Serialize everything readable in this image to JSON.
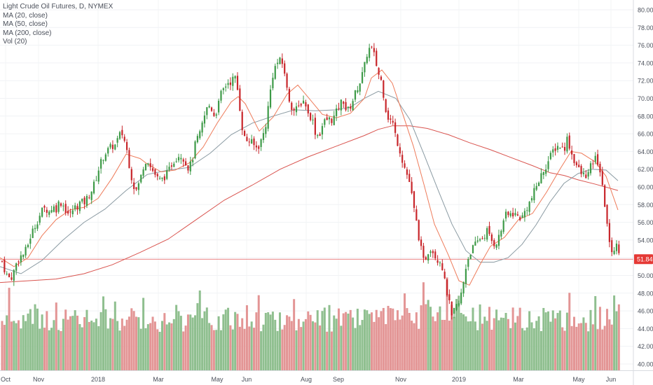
{
  "legend": {
    "title": "Light Crude Oil Futures, D, NYMEX",
    "ma20": "MA (20, close)",
    "ma50": "MA (50, close)",
    "ma200": "MA (200, close)",
    "vol": "Vol (20)"
  },
  "colors": {
    "up": "#3d9a47",
    "down": "#c8262b",
    "vol_up": "#8fbf8f",
    "vol_down": "#e39595",
    "ma20": "#ee7b5a",
    "ma50": "#8a9aa2",
    "ma200": "#d9544f",
    "last_price_bg": "#e53935"
  },
  "chart_data": {
    "type": "candlestick",
    "y_axis": {
      "ticks": [
        "80.00",
        "78.00",
        "76.00",
        "74.00",
        "72.00",
        "70.00",
        "68.00",
        "66.00",
        "64.00",
        "62.00",
        "60.00",
        "58.00",
        "56.00",
        "54.00",
        "52.00",
        "50.00",
        "48.00",
        "46.00",
        "44.00",
        "42.00",
        "40.00"
      ],
      "range": [
        39.2,
        81.2
      ]
    },
    "x_axis": {
      "labels": [
        "Oct",
        "Nov",
        "2018",
        "Mar",
        "May",
        "Jun",
        "Aug",
        "Sep",
        "Nov",
        "2019",
        "Mar",
        "May",
        "Jun"
      ]
    },
    "last_price": "51.84",
    "price_path": [
      [
        0,
        52.5
      ],
      [
        5,
        51.0
      ],
      [
        10,
        50.0
      ],
      [
        15,
        49.6
      ],
      [
        20,
        50.5
      ],
      [
        25,
        51.8
      ],
      [
        30,
        52.2
      ],
      [
        35,
        52.5
      ],
      [
        40,
        53.5
      ],
      [
        45,
        54.8
      ],
      [
        50,
        55.6
      ],
      [
        55,
        56.5
      ],
      [
        60,
        57.3
      ],
      [
        65,
        57.6
      ],
      [
        70,
        57.2
      ],
      [
        75,
        57.8
      ],
      [
        80,
        57.5
      ],
      [
        85,
        58.4
      ],
      [
        90,
        58.0
      ],
      [
        95,
        57.2
      ],
      [
        100,
        56.8
      ],
      [
        105,
        57.6
      ],
      [
        110,
        57.8
      ],
      [
        115,
        58.3
      ],
      [
        120,
        58.2
      ],
      [
        125,
        58.8
      ],
      [
        130,
        59.5
      ],
      [
        135,
        60.4
      ],
      [
        140,
        61.8
      ],
      [
        145,
        63.0
      ],
      [
        150,
        63.8
      ],
      [
        155,
        64.2
      ],
      [
        160,
        64.6
      ],
      [
        165,
        64.7
      ],
      [
        170,
        65.8
      ],
      [
        175,
        66.0
      ],
      [
        180,
        64.6
      ],
      [
        185,
        62.3
      ],
      [
        190,
        60.2
      ],
      [
        195,
        59.6
      ],
      [
        200,
        60.8
      ],
      [
        205,
        62.5
      ],
      [
        210,
        63.3
      ],
      [
        215,
        62.2
      ],
      [
        220,
        61.6
      ],
      [
        225,
        60.9
      ],
      [
        230,
        60.7
      ],
      [
        235,
        61.2
      ],
      [
        240,
        61.6
      ],
      [
        245,
        62.6
      ],
      [
        250,
        63.2
      ],
      [
        255,
        63.6
      ],
      [
        260,
        63.6
      ],
      [
        265,
        62.7
      ],
      [
        270,
        62.0
      ],
      [
        275,
        63.3
      ],
      [
        280,
        65.3
      ],
      [
        285,
        65.8
      ],
      [
        290,
        67.5
      ],
      [
        295,
        68.8
      ],
      [
        300,
        69.3
      ],
      [
        305,
        68.1
      ],
      [
        310,
        68.7
      ],
      [
        315,
        70.4
      ],
      [
        320,
        71.2
      ],
      [
        325,
        71.8
      ],
      [
        330,
        71.9
      ],
      [
        335,
        72.5
      ],
      [
        340,
        70.6
      ],
      [
        345,
        67.0
      ],
      [
        350,
        65.2
      ],
      [
        355,
        65.3
      ],
      [
        360,
        64.9
      ],
      [
        365,
        64.4
      ],
      [
        370,
        64.7
      ],
      [
        375,
        65.7
      ],
      [
        380,
        67.3
      ],
      [
        385,
        70.4
      ],
      [
        390,
        73.0
      ],
      [
        395,
        74.0
      ],
      [
        400,
        74.2
      ],
      [
        405,
        73.7
      ],
      [
        410,
        70.7
      ],
      [
        415,
        69.3
      ],
      [
        420,
        68.6
      ],
      [
        425,
        68.8
      ],
      [
        430,
        69.6
      ],
      [
        435,
        69.8
      ],
      [
        440,
        68.1
      ],
      [
        445,
        67.9
      ],
      [
        450,
        66.2
      ],
      [
        455,
        65.7
      ],
      [
        460,
        66.9
      ],
      [
        465,
        67.6
      ],
      [
        470,
        67.6
      ],
      [
        475,
        67.6
      ],
      [
        480,
        68.4
      ],
      [
        485,
        69.4
      ],
      [
        490,
        69.8
      ],
      [
        495,
        68.4
      ],
      [
        500,
        69.1
      ],
      [
        505,
        70.1
      ],
      [
        510,
        71.2
      ],
      [
        515,
        72.1
      ],
      [
        520,
        73.5
      ],
      [
        525,
        75.5
      ],
      [
        530,
        75.7
      ],
      [
        535,
        74.6
      ],
      [
        540,
        72.8
      ],
      [
        545,
        71.8
      ],
      [
        550,
        69.0
      ],
      [
        555,
        67.6
      ],
      [
        560,
        67.4
      ],
      [
        565,
        65.6
      ],
      [
        570,
        64.4
      ],
      [
        575,
        62.8
      ],
      [
        580,
        61.6
      ],
      [
        585,
        60.4
      ],
      [
        590,
        57.8
      ],
      [
        595,
        55.7
      ],
      [
        600,
        53.3
      ],
      [
        605,
        51.4
      ],
      [
        610,
        52.6
      ],
      [
        615,
        53.2
      ],
      [
        620,
        52.4
      ],
      [
        625,
        51.8
      ],
      [
        630,
        51.6
      ],
      [
        635,
        49.1
      ],
      [
        640,
        47.4
      ],
      [
        645,
        45.1
      ],
      [
        650,
        46.4
      ],
      [
        655,
        46.8
      ],
      [
        660,
        48.5
      ],
      [
        665,
        51.0
      ],
      [
        670,
        52.5
      ],
      [
        675,
        53.1
      ],
      [
        680,
        53.6
      ],
      [
        685,
        54.2
      ],
      [
        690,
        54.3
      ],
      [
        695,
        55.1
      ],
      [
        700,
        54.1
      ],
      [
        705,
        53.6
      ],
      [
        710,
        53.9
      ],
      [
        715,
        55.0
      ],
      [
        720,
        56.8
      ],
      [
        725,
        56.7
      ],
      [
        730,
        57.1
      ],
      [
        735,
        56.9
      ],
      [
        740,
        56.6
      ],
      [
        745,
        56.5
      ],
      [
        750,
        57.4
      ],
      [
        755,
        58.1
      ],
      [
        760,
        58.9
      ],
      [
        765,
        60.0
      ],
      [
        770,
        60.8
      ],
      [
        775,
        61.8
      ],
      [
        780,
        62.5
      ],
      [
        785,
        63.3
      ],
      [
        790,
        64.2
      ],
      [
        795,
        64.6
      ],
      [
        800,
        64.6
      ],
      [
        805,
        64.2
      ],
      [
        810,
        65.6
      ],
      [
        815,
        63.9
      ],
      [
        820,
        62.9
      ],
      [
        825,
        62.1
      ],
      [
        830,
        61.4
      ],
      [
        835,
        61.3
      ],
      [
        840,
        61.5
      ],
      [
        845,
        62.7
      ],
      [
        850,
        63.2
      ],
      [
        855,
        62.6
      ],
      [
        860,
        59.7
      ],
      [
        865,
        57.1
      ],
      [
        870,
        53.3
      ],
      [
        875,
        52.8
      ],
      [
        880,
        53.3
      ],
      [
        885,
        52.8
      ],
      [
        890,
        51.8
      ],
      [
        892,
        51.84
      ]
    ],
    "ma20_path": [
      [
        0,
        52.0
      ],
      [
        20,
        51.0
      ],
      [
        40,
        52.0
      ],
      [
        60,
        54.5
      ],
      [
        80,
        56.3
      ],
      [
        100,
        57.4
      ],
      [
        120,
        57.7
      ],
      [
        140,
        58.7
      ],
      [
        160,
        61.0
      ],
      [
        180,
        63.7
      ],
      [
        200,
        63.2
      ],
      [
        210,
        62.6
      ],
      [
        230,
        61.7
      ],
      [
        250,
        61.9
      ],
      [
        270,
        62.7
      ],
      [
        290,
        64.5
      ],
      [
        310,
        67.2
      ],
      [
        330,
        69.6
      ],
      [
        340,
        70.2
      ],
      [
        350,
        69.4
      ],
      [
        370,
        66.3
      ],
      [
        390,
        67.9
      ],
      [
        410,
        70.5
      ],
      [
        425,
        71.5
      ],
      [
        440,
        70.1
      ],
      [
        460,
        68.2
      ],
      [
        480,
        67.8
      ],
      [
        500,
        68.3
      ],
      [
        520,
        70.0
      ],
      [
        530,
        72.3
      ],
      [
        545,
        73.2
      ],
      [
        560,
        71.7
      ],
      [
        575,
        68.2
      ],
      [
        590,
        64.6
      ],
      [
        605,
        60.3
      ],
      [
        620,
        55.8
      ],
      [
        640,
        52.3
      ],
      [
        655,
        49.4
      ],
      [
        670,
        48.9
      ],
      [
        685,
        51.2
      ],
      [
        700,
        53.3
      ],
      [
        720,
        54.3
      ],
      [
        740,
        56.3
      ],
      [
        760,
        57.0
      ],
      [
        780,
        59.4
      ],
      [
        800,
        62.1
      ],
      [
        815,
        64.0
      ],
      [
        830,
        63.8
      ],
      [
        850,
        62.8
      ],
      [
        865,
        61.2
      ],
      [
        882,
        57.4
      ]
    ],
    "ma50_path": [
      [
        0,
        51.0
      ],
      [
        30,
        50.2
      ],
      [
        60,
        51.7
      ],
      [
        90,
        54.0
      ],
      [
        120,
        56.0
      ],
      [
        150,
        57.5
      ],
      [
        180,
        59.6
      ],
      [
        210,
        61.4
      ],
      [
        240,
        61.9
      ],
      [
        270,
        62.2
      ],
      [
        300,
        63.8
      ],
      [
        330,
        65.9
      ],
      [
        360,
        67.2
      ],
      [
        390,
        68.0
      ],
      [
        420,
        68.7
      ],
      [
        450,
        68.6
      ],
      [
        480,
        68.7
      ],
      [
        500,
        69.0
      ],
      [
        520,
        70.0
      ],
      [
        540,
        70.8
      ],
      [
        565,
        70.0
      ],
      [
        585,
        67.6
      ],
      [
        605,
        63.7
      ],
      [
        625,
        59.7
      ],
      [
        645,
        55.8
      ],
      [
        665,
        52.8
      ],
      [
        685,
        51.5
      ],
      [
        705,
        51.5
      ],
      [
        725,
        52.0
      ],
      [
        745,
        53.5
      ],
      [
        765,
        55.7
      ],
      [
        785,
        58.3
      ],
      [
        805,
        60.4
      ],
      [
        825,
        61.5
      ],
      [
        845,
        62.0
      ],
      [
        865,
        61.9
      ],
      [
        882,
        60.7
      ]
    ],
    "ma200_path": [
      [
        0,
        49.2
      ],
      [
        40,
        49.4
      ],
      [
        80,
        49.6
      ],
      [
        120,
        50.2
      ],
      [
        160,
        51.2
      ],
      [
        200,
        52.6
      ],
      [
        240,
        54.1
      ],
      [
        280,
        56.3
      ],
      [
        320,
        58.5
      ],
      [
        360,
        60.2
      ],
      [
        400,
        62.0
      ],
      [
        440,
        63.4
      ],
      [
        480,
        64.6
      ],
      [
        520,
        65.8
      ],
      [
        540,
        66.5
      ],
      [
        560,
        66.9
      ],
      [
        585,
        66.9
      ],
      [
        610,
        66.6
      ],
      [
        640,
        65.9
      ],
      [
        670,
        65.0
      ],
      [
        700,
        64.2
      ],
      [
        730,
        63.3
      ],
      [
        760,
        62.4
      ],
      [
        785,
        61.6
      ],
      [
        805,
        61.3
      ],
      [
        825,
        60.8
      ],
      [
        850,
        60.3
      ],
      [
        882,
        59.6
      ]
    ]
  }
}
